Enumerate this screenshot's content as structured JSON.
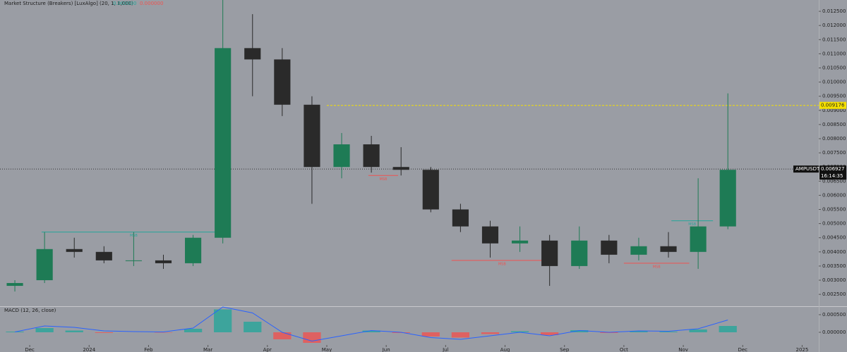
{
  "chart_data": {
    "type": "candlestick",
    "indicator_title": "Market Structure (Breakers) [LuxAlgo] (20, 1, 1,000)",
    "indicator_values": [
      {
        "text": "0.000000",
        "color": "#26a69a"
      },
      {
        "text": "0.000000",
        "color": "#ef5350"
      }
    ],
    "symbol": "AMPUSDT",
    "countdown": "16:14:35",
    "last_price": 0.006927,
    "marked_price": 0.009176,
    "marked_price_start": 5.0,
    "up_color": "#1e7b55",
    "down_color": "#2a2a2a",
    "x": [
      -0.25,
      0.25,
      0.75,
      1.25,
      1.75,
      2.25,
      2.75,
      3.25,
      3.75,
      4.25,
      4.75,
      5.25,
      5.75,
      6.25,
      6.75,
      7.25,
      7.75,
      8.25,
      8.75,
      9.25,
      9.75,
      10.25,
      10.75,
      11.25,
      11.75
    ],
    "open": [
      0.0028,
      0.003,
      0.0041,
      0.004,
      0.0037,
      0.0037,
      0.0036,
      0.0045,
      0.0112,
      0.0108,
      0.0092,
      0.007,
      0.0078,
      0.007,
      0.0069,
      0.0055,
      0.0049,
      0.0043,
      0.0044,
      0.0035,
      0.0044,
      0.0039,
      0.0042,
      0.004,
      0.0049
    ],
    "high": [
      0.003,
      0.0047,
      0.0045,
      0.0042,
      0.0047,
      0.0039,
      0.0046,
      0.0129,
      0.0124,
      0.0112,
      0.0095,
      0.0082,
      0.0081,
      0.0077,
      0.007,
      0.0057,
      0.0051,
      0.0049,
      0.0046,
      0.0049,
      0.0046,
      0.0045,
      0.0047,
      0.0066,
      0.0096
    ],
    "low": [
      0.0026,
      0.0029,
      0.0038,
      0.0036,
      0.0035,
      0.0034,
      0.0035,
      0.0043,
      0.0095,
      0.0088,
      0.0057,
      0.0066,
      0.0068,
      0.0067,
      0.0054,
      0.0047,
      0.0038,
      0.004,
      0.0028,
      0.0034,
      0.0036,
      0.0037,
      0.0038,
      0.0034,
      0.0048
    ],
    "close": [
      0.0029,
      0.0041,
      0.004,
      0.0037,
      0.0037,
      0.0036,
      0.0045,
      0.0112,
      0.0108,
      0.0092,
      0.007,
      0.0078,
      0.007,
      0.0069,
      0.0055,
      0.0049,
      0.0043,
      0.0044,
      0.0035,
      0.0044,
      0.0039,
      0.0042,
      0.004,
      0.0049,
      0.0069
    ],
    "structure_levels": [
      {
        "label": "MSB",
        "color": "#26a69a",
        "price": 0.0047,
        "start": 0.2,
        "end": 3.3
      },
      {
        "label": "MSB",
        "color": "#ef5350",
        "price": 0.0067,
        "start": 5.7,
        "end": 6.2
      },
      {
        "label": "MSB",
        "color": "#ef5350",
        "price": 0.0037,
        "start": 7.1,
        "end": 8.8
      },
      {
        "label": "MSB",
        "color": "#ef5350",
        "price": 0.0036,
        "start": 10.0,
        "end": 11.1
      },
      {
        "label": "MSB",
        "color": "#26a69a",
        "price": 0.0051,
        "start": 10.8,
        "end": 11.5
      }
    ],
    "xlim": [
      -0.5,
      13.28
    ],
    "xticks": [
      {
        "value": 0,
        "label": "Dec"
      },
      {
        "value": 1,
        "label": "2024"
      },
      {
        "value": 2,
        "label": "Feb"
      },
      {
        "value": 3,
        "label": "Mar"
      },
      {
        "value": 4,
        "label": "Apr"
      },
      {
        "value": 5,
        "label": "May"
      },
      {
        "value": 6,
        "label": "Jun"
      },
      {
        "value": 7,
        "label": "Jul"
      },
      {
        "value": 8,
        "label": "Aug"
      },
      {
        "value": 9,
        "label": "Sep"
      },
      {
        "value": 10,
        "label": "Oct"
      },
      {
        "value": 11,
        "label": "Nov"
      },
      {
        "value": 12,
        "label": "Dec"
      },
      {
        "value": 13,
        "label": "2025"
      }
    ],
    "ylim": [
      0.00208,
      0.0129
    ],
    "yticks": [
      {
        "value": 0.0025,
        "label": "0.002500"
      },
      {
        "value": 0.003,
        "label": "0.003000"
      },
      {
        "value": 0.0035,
        "label": "0.003500"
      },
      {
        "value": 0.004,
        "label": "0.004000"
      },
      {
        "value": 0.0045,
        "label": "0.004500"
      },
      {
        "value": 0.005,
        "label": "0.005000"
      },
      {
        "value": 0.0055,
        "label": "0.005500"
      },
      {
        "value": 0.006,
        "label": "0.006000"
      },
      {
        "value": 0.0065,
        "label": "0.006500"
      },
      {
        "value": 0.007,
        "label": "0.007000"
      },
      {
        "value": 0.0075,
        "label": "0.007500"
      },
      {
        "value": 0.008,
        "label": "0.008000"
      },
      {
        "value": 0.0085,
        "label": "0.008500"
      },
      {
        "value": 0.009,
        "label": "0.009000"
      },
      {
        "value": 0.0095,
        "label": "0.009500"
      },
      {
        "value": 0.01,
        "label": "0.010000"
      },
      {
        "value": 0.0105,
        "label": "0.010500"
      },
      {
        "value": 0.011,
        "label": "0.011000"
      },
      {
        "value": 0.0115,
        "label": "0.011500"
      },
      {
        "value": 0.012,
        "label": "0.012000"
      },
      {
        "value": 0.0125,
        "label": "0.012500"
      }
    ],
    "macd": {
      "title": "MACD (12, 26, close)",
      "hist_up_color": "#26a69a",
      "hist_down_color": "#ef5350",
      "line_color": "#2962ff",
      "ylim": [
        -0.00036,
        0.00072
      ],
      "yticks": [
        {
          "value": 0.0005,
          "label": "0.000500"
        },
        {
          "value": 0,
          "label": "0.000000"
        }
      ],
      "histogram": [
        2e-05,
        0.00012,
        5e-05,
        -2e-05,
        0.0,
        -1e-05,
        0.0001,
        0.00065,
        0.0003,
        -0.0002,
        -0.0003,
        0.0,
        5e-05,
        -2e-05,
        -0.00012,
        -0.00015,
        -5e-05,
        3e-05,
        -8e-05,
        6e-05,
        -2e-05,
        3e-05,
        2e-05,
        8e-05,
        0.00018
      ],
      "line": [
        1e-05,
        0.00018,
        0.00014,
        4e-05,
        2e-05,
        1e-05,
        0.00012,
        0.00072,
        0.00055,
        0.0,
        -0.00025,
        -0.0001,
        5e-05,
        0.0,
        -0.00015,
        -0.0002,
        -0.0001,
        0.0,
        -0.0001,
        5e-05,
        0.0,
        4e-05,
        3e-05,
        0.0001,
        0.00035
      ]
    }
  }
}
